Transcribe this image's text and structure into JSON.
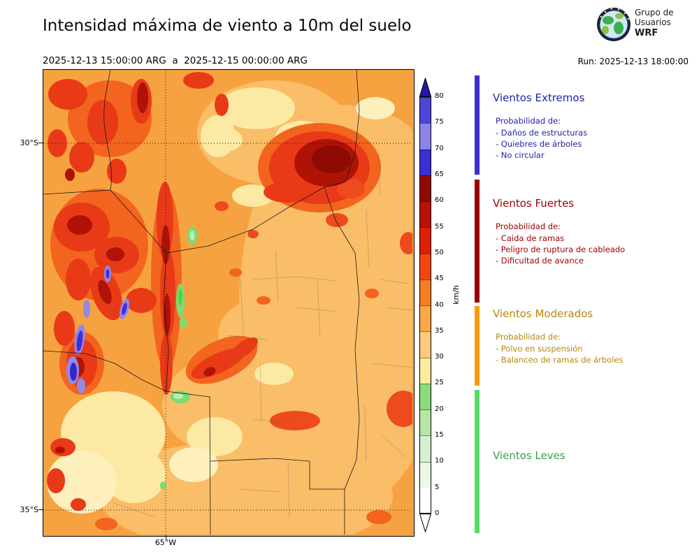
{
  "header": {
    "title": "Intensidad máxima de viento a 10m del suelo",
    "date_range": "2025-12-13 15:00:00 ARG  a  2025-12-15 00:00:00 ARG",
    "run_label": "Run: 2025-12-13 18:00:00",
    "logo": {
      "line1": "Grupo de",
      "line2": "Usuarios",
      "line3": "WRF"
    }
  },
  "map": {
    "y_axis_labels": [
      "30°S",
      "35°S"
    ],
    "x_axis_label": "65°W"
  },
  "colorbar": {
    "unit": "km/h",
    "ticks": [
      "0",
      "5",
      "10",
      "15",
      "20",
      "25",
      "30",
      "35",
      "40",
      "45",
      "50",
      "55",
      "60",
      "65",
      "70",
      "75",
      "80"
    ],
    "segments": [
      {
        "from": 0,
        "to": 5,
        "color": "#FFFFFF"
      },
      {
        "from": 5,
        "to": 10,
        "color": "#ECF8E8"
      },
      {
        "from": 10,
        "to": 15,
        "color": "#D5F0CE"
      },
      {
        "from": 15,
        "to": 20,
        "color": "#B5E6A7"
      },
      {
        "from": 20,
        "to": 25,
        "color": "#8BDB7D"
      },
      {
        "from": 25,
        "to": 30,
        "color": "#FDEC9F"
      },
      {
        "from": 30,
        "to": 35,
        "color": "#FBCA7E"
      },
      {
        "from": 35,
        "to": 40,
        "color": "#F8A845"
      },
      {
        "from": 40,
        "to": 45,
        "color": "#F57E22"
      },
      {
        "from": 45,
        "to": 50,
        "color": "#F04713"
      },
      {
        "from": 50,
        "to": 55,
        "color": "#DC2106"
      },
      {
        "from": 55,
        "to": 60,
        "color": "#B71306"
      },
      {
        "from": 60,
        "to": 65,
        "color": "#8F0B03"
      },
      {
        "from": 65,
        "to": 70,
        "color": "#3B2FD0"
      },
      {
        "from": 70,
        "to": 75,
        "color": "#8C84EA"
      },
      {
        "from": 75,
        "to": 80,
        "color": "#4E44D6"
      }
    ],
    "over_color": "#2318A0",
    "under_color": "#FFFFFF"
  },
  "legend": {
    "sections": [
      {
        "name": "Vientos Extremos",
        "color": "#2222AA",
        "bar_color": "#3C2BD6",
        "prob_label": "Probabilidad de:",
        "items": [
          "- Daños de estructuras",
          "- Quiebres de árboles",
          "- No circular"
        ]
      },
      {
        "name": "Vientos Fuertes",
        "color": "#A30000",
        "bar_color": "#990000",
        "prob_label": "Probabilidad de:",
        "items": [
          "- Caida de ramas",
          "- Peligro de ruptura de cableado",
          "- Dificultad de avance"
        ]
      },
      {
        "name": "Vientos Moderados",
        "color": "#B8860B",
        "bar_color": "#FF9900",
        "prob_label": "Probabilidad de:",
        "items": [
          "- Polvo en suspensión",
          "- Balanceo de ramas de árboles"
        ]
      },
      {
        "name": "Vientos Leves",
        "color": "#389E4A",
        "bar_color": "#55DC65",
        "prob_label": "",
        "items": []
      }
    ]
  }
}
